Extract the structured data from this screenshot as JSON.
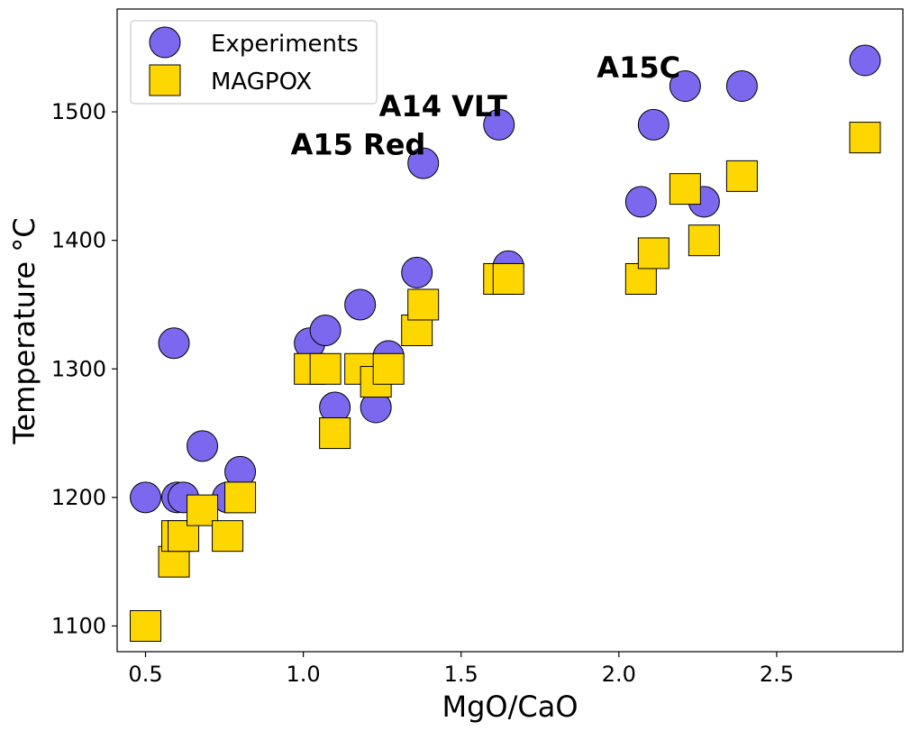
{
  "chart_data": {
    "type": "scatter",
    "title": "",
    "xlabel": "MgO/CaO",
    "ylabel": "Temperature °C",
    "xlim": [
      0.41,
      2.9
    ],
    "ylim": [
      1080,
      1580
    ],
    "xticks": [
      0.5,
      1.0,
      1.5,
      2.0,
      2.5
    ],
    "xtick_labels": [
      "0.5",
      "1.0",
      "1.5",
      "2.0",
      "2.5"
    ],
    "yticks": [
      1100,
      1200,
      1300,
      1400,
      1500
    ],
    "ytick_labels": [
      "1100",
      "1200",
      "1300",
      "1400",
      "1500"
    ],
    "grid": false,
    "legend_position": "top-left",
    "series": [
      {
        "name": "Experiments",
        "marker": "circle",
        "color": "#7B68EE",
        "points": [
          {
            "x": 0.5,
            "y": 1200
          },
          {
            "x": 0.59,
            "y": 1320
          },
          {
            "x": 0.6,
            "y": 1200
          },
          {
            "x": 0.62,
            "y": 1200
          },
          {
            "x": 0.68,
            "y": 1240
          },
          {
            "x": 0.76,
            "y": 1200
          },
          {
            "x": 0.8,
            "y": 1220
          },
          {
            "x": 1.02,
            "y": 1320
          },
          {
            "x": 1.07,
            "y": 1330
          },
          {
            "x": 1.1,
            "y": 1270
          },
          {
            "x": 1.18,
            "y": 1350
          },
          {
            "x": 1.23,
            "y": 1270
          },
          {
            "x": 1.27,
            "y": 1310
          },
          {
            "x": 1.36,
            "y": 1375
          },
          {
            "x": 1.38,
            "y": 1460
          },
          {
            "x": 1.62,
            "y": 1490
          },
          {
            "x": 1.65,
            "y": 1380
          },
          {
            "x": 2.07,
            "y": 1430
          },
          {
            "x": 2.11,
            "y": 1490
          },
          {
            "x": 2.21,
            "y": 1520
          },
          {
            "x": 2.27,
            "y": 1430
          },
          {
            "x": 2.39,
            "y": 1520
          },
          {
            "x": 2.78,
            "y": 1540
          }
        ]
      },
      {
        "name": "MAGPOX",
        "marker": "square",
        "color": "#FFD700",
        "points": [
          {
            "x": 0.5,
            "y": 1100
          },
          {
            "x": 0.59,
            "y": 1150
          },
          {
            "x": 0.6,
            "y": 1170
          },
          {
            "x": 0.62,
            "y": 1170
          },
          {
            "x": 0.68,
            "y": 1190
          },
          {
            "x": 0.76,
            "y": 1170
          },
          {
            "x": 0.8,
            "y": 1200
          },
          {
            "x": 1.02,
            "y": 1300
          },
          {
            "x": 1.07,
            "y": 1300
          },
          {
            "x": 1.1,
            "y": 1250
          },
          {
            "x": 1.18,
            "y": 1300
          },
          {
            "x": 1.23,
            "y": 1290
          },
          {
            "x": 1.27,
            "y": 1300
          },
          {
            "x": 1.36,
            "y": 1330
          },
          {
            "x": 1.38,
            "y": 1350
          },
          {
            "x": 1.62,
            "y": 1370
          },
          {
            "x": 1.65,
            "y": 1370
          },
          {
            "x": 2.07,
            "y": 1370
          },
          {
            "x": 2.11,
            "y": 1390
          },
          {
            "x": 2.21,
            "y": 1440
          },
          {
            "x": 2.27,
            "y": 1400
          },
          {
            "x": 2.39,
            "y": 1450
          },
          {
            "x": 2.78,
            "y": 1480
          }
        ]
      }
    ],
    "annotations": [
      {
        "text": "A15C",
        "x": 1.93,
        "y": 1535
      },
      {
        "text": "A14 VLT",
        "x": 1.24,
        "y": 1505
      },
      {
        "text": "A15 Red",
        "x": 0.96,
        "y": 1475
      }
    ]
  }
}
